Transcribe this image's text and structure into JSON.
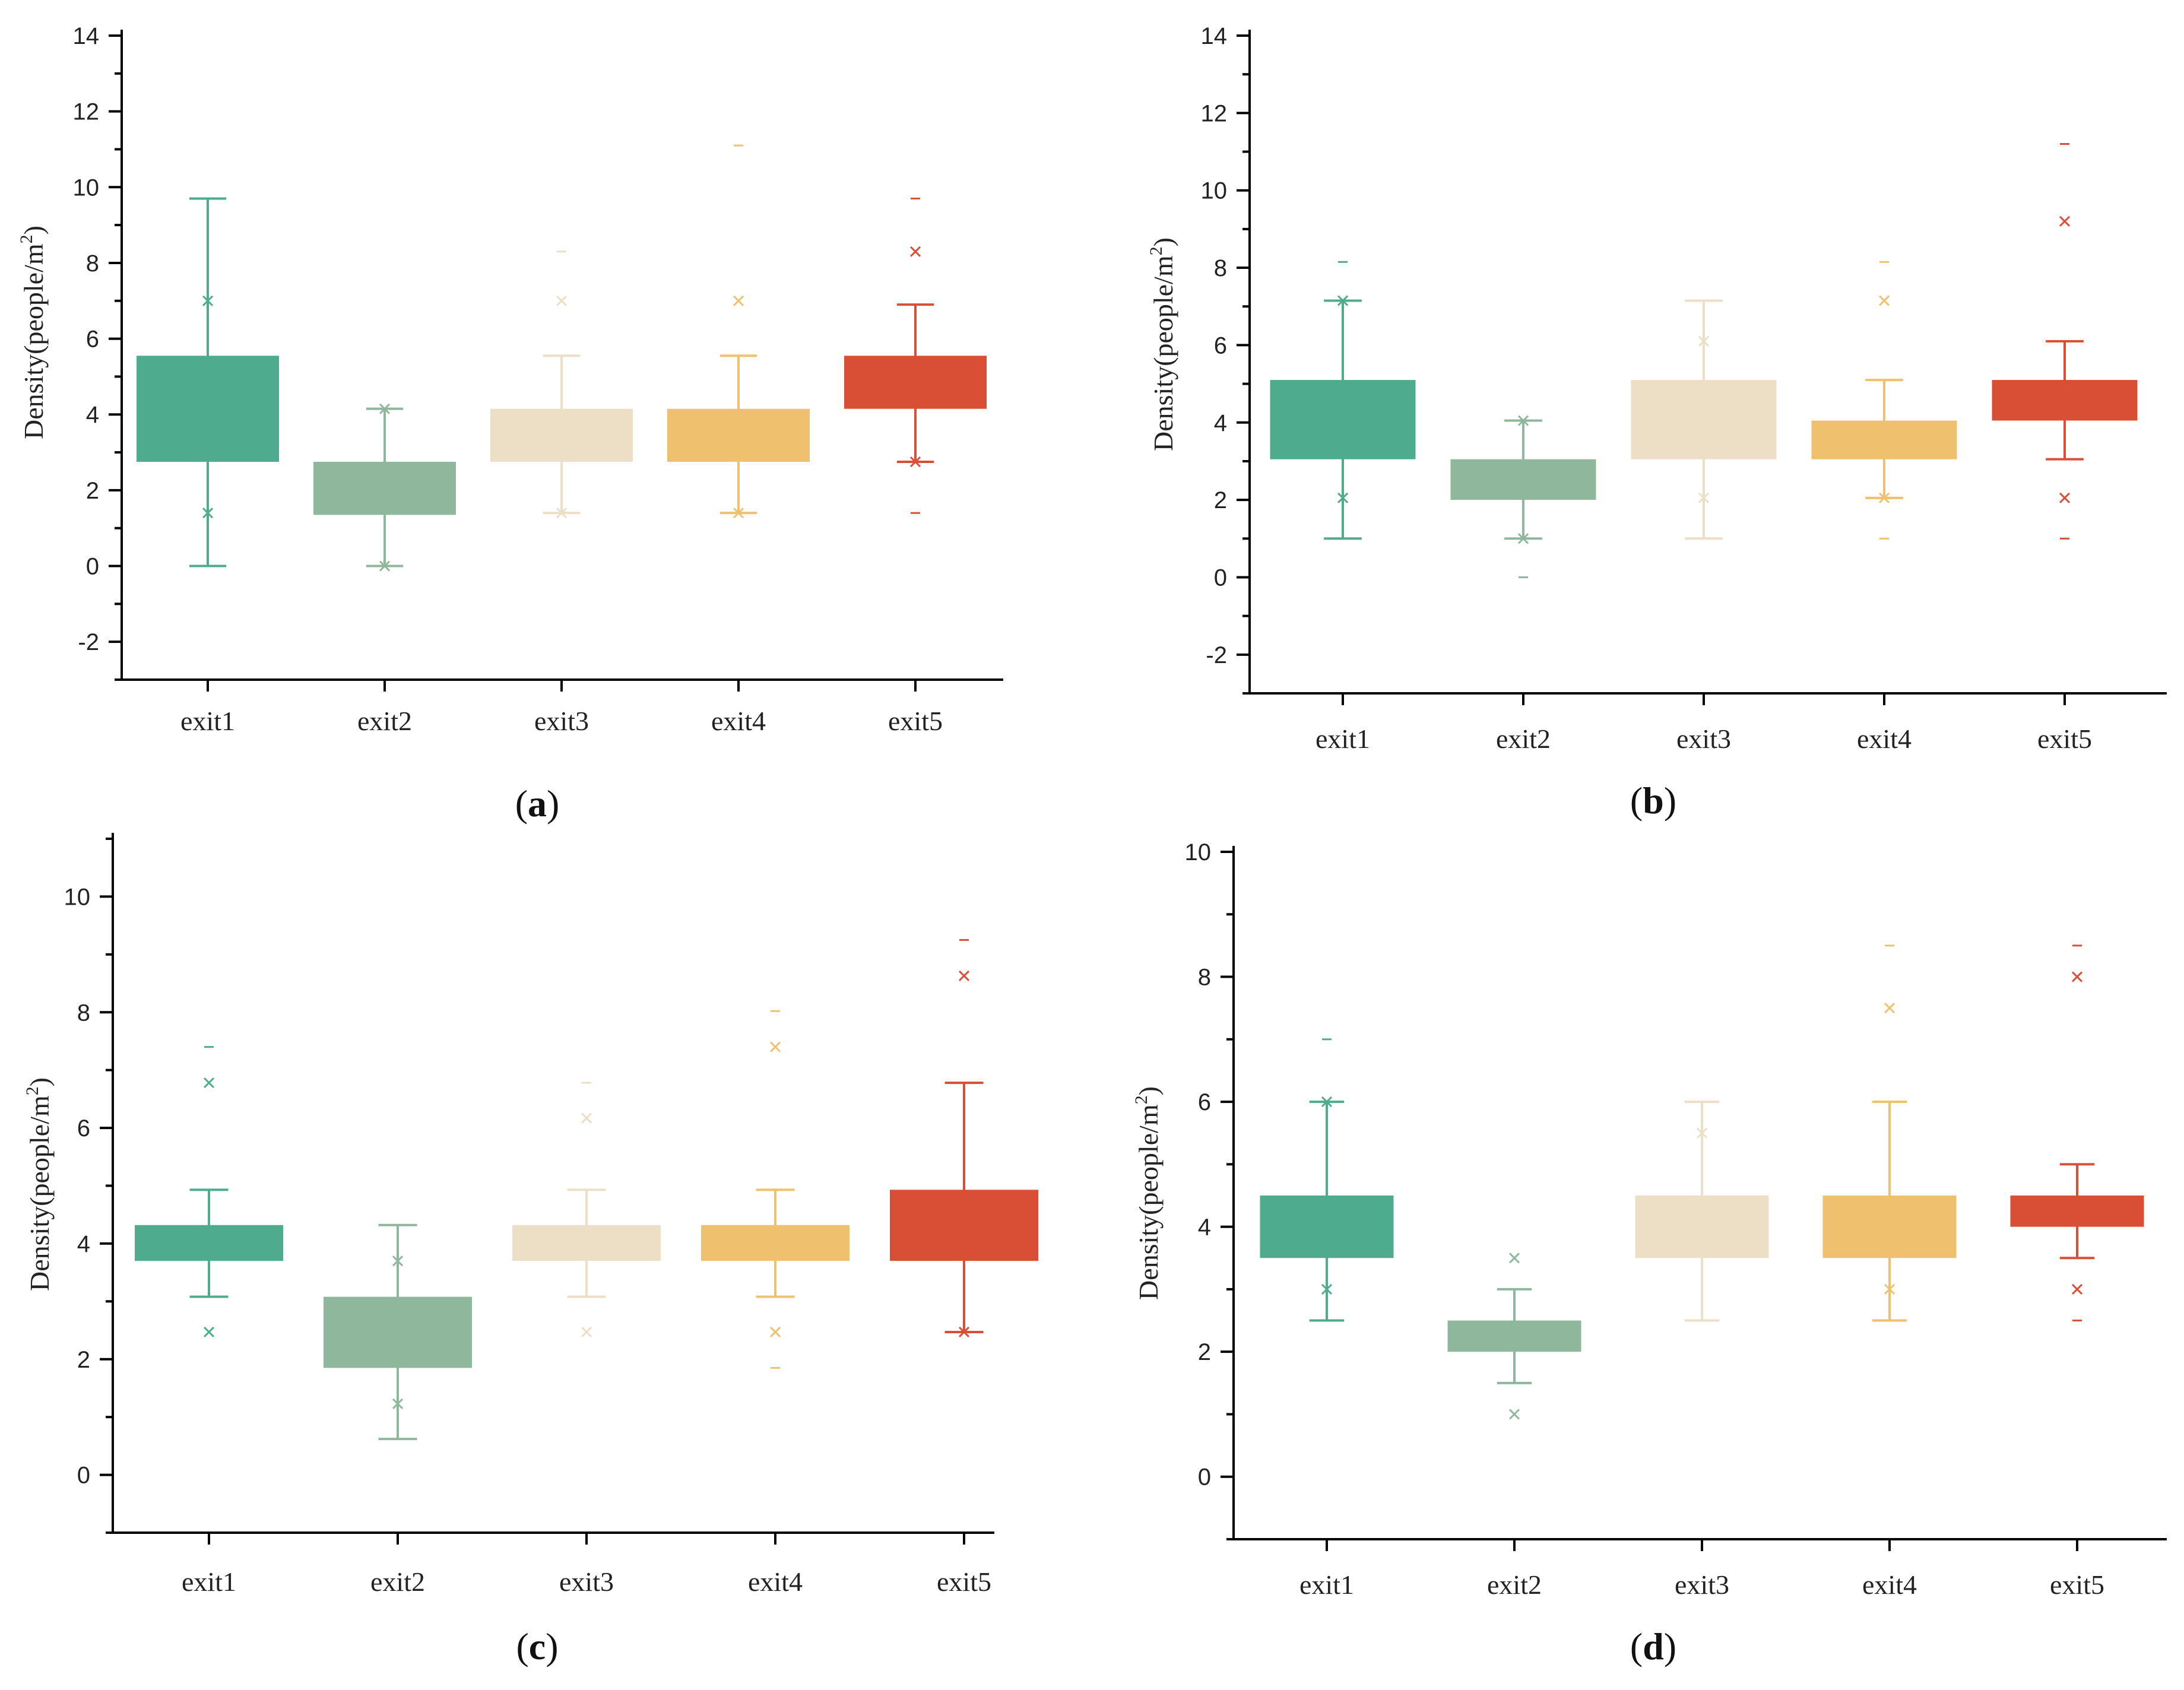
{
  "figure": {
    "colors": {
      "exit1": "#4fab8e",
      "exit2": "#8fb79c",
      "exit3": "#ecdfc6",
      "exit4": "#efc06e",
      "exit5": "#d94f35"
    }
  },
  "chart_data": [
    {
      "type": "box",
      "panel": "(a)",
      "panel_letter": "a",
      "ylabel": "Density(people/m",
      "ylabel_sup": "2",
      "ylabel_end": ")",
      "ylim": [
        -3,
        14
      ],
      "yticks": [
        -2,
        0,
        2,
        4,
        6,
        8,
        10,
        12,
        14
      ],
      "categories": [
        "exit1",
        "exit2",
        "exit3",
        "exit4",
        "exit5"
      ],
      "boxes": [
        {
          "name": "exit1",
          "q1": 2.75,
          "q3": 5.55,
          "wlo": 0.0,
          "whi": 9.7,
          "x_marks": [
            1.4,
            7.0
          ],
          "dash_marks": []
        },
        {
          "name": "exit2",
          "q1": 1.35,
          "q3": 2.75,
          "wlo": 0.0,
          "whi": 4.15,
          "x_marks": [
            0.0,
            4.15
          ],
          "dash_marks": []
        },
        {
          "name": "exit3",
          "q1": 2.75,
          "q3": 4.15,
          "wlo": 1.4,
          "whi": 5.55,
          "x_marks": [
            1.4,
            7.0
          ],
          "dash_marks": [
            8.3
          ]
        },
        {
          "name": "exit4",
          "q1": 2.75,
          "q3": 4.15,
          "wlo": 1.4,
          "whi": 5.55,
          "x_marks": [
            1.4,
            7.0
          ],
          "dash_marks": [
            11.1
          ]
        },
        {
          "name": "exit5",
          "q1": 4.15,
          "q3": 5.55,
          "wlo": 2.75,
          "whi": 6.9,
          "x_marks": [
            2.75,
            8.3
          ],
          "dash_marks": [
            1.4,
            9.7
          ]
        }
      ]
    },
    {
      "type": "box",
      "panel": "(b)",
      "panel_letter": "b",
      "ylabel": "Density(people/m",
      "ylabel_sup": "2",
      "ylabel_end": ")",
      "ylim": [
        -3,
        14
      ],
      "yticks": [
        -2,
        0,
        2,
        4,
        6,
        8,
        10,
        12,
        14
      ],
      "categories": [
        "exit1",
        "exit2",
        "exit3",
        "exit4",
        "exit5"
      ],
      "boxes": [
        {
          "name": "exit1",
          "q1": 3.05,
          "q3": 5.1,
          "wlo": 1.0,
          "whi": 7.15,
          "x_marks": [
            2.05,
            7.15
          ],
          "dash_marks": [
            8.15
          ]
        },
        {
          "name": "exit2",
          "q1": 2.0,
          "q3": 3.05,
          "wlo": 1.0,
          "whi": 4.05,
          "x_marks": [
            1.0,
            4.05
          ],
          "dash_marks": [
            0.0
          ]
        },
        {
          "name": "exit3",
          "q1": 3.05,
          "q3": 5.1,
          "wlo": 1.0,
          "whi": 7.15,
          "x_marks": [
            2.05,
            6.1
          ],
          "dash_marks": []
        },
        {
          "name": "exit4",
          "q1": 3.05,
          "q3": 4.05,
          "wlo": 2.05,
          "whi": 5.1,
          "x_marks": [
            2.05,
            7.15
          ],
          "dash_marks": [
            1.0,
            8.15
          ]
        },
        {
          "name": "exit5",
          "q1": 4.05,
          "q3": 5.1,
          "wlo": 3.05,
          "whi": 6.1,
          "x_marks": [
            2.05,
            9.2
          ],
          "dash_marks": [
            1.0,
            11.2
          ]
        }
      ]
    },
    {
      "type": "box",
      "panel": "(c)",
      "panel_letter": "c",
      "ylabel": "Density(people/m",
      "ylabel_sup": "2",
      "ylabel_end": ")",
      "ylim": [
        -1,
        11
      ],
      "yticks": [
        0,
        2,
        4,
        6,
        8,
        10
      ],
      "categories": [
        "exit1",
        "exit2",
        "exit3",
        "exit4",
        "exit5"
      ],
      "boxes": [
        {
          "name": "exit1",
          "q1": 3.7,
          "q3": 4.32,
          "wlo": 3.08,
          "whi": 4.93,
          "x_marks": [
            2.47,
            6.78
          ],
          "dash_marks": [
            7.4
          ]
        },
        {
          "name": "exit2",
          "q1": 1.85,
          "q3": 3.08,
          "wlo": 0.62,
          "whi": 4.32,
          "x_marks": [
            1.23,
            3.7
          ],
          "dash_marks": []
        },
        {
          "name": "exit3",
          "q1": 3.7,
          "q3": 4.32,
          "wlo": 3.08,
          "whi": 4.93,
          "x_marks": [
            2.47,
            6.17
          ],
          "dash_marks": [
            6.78
          ]
        },
        {
          "name": "exit4",
          "q1": 3.7,
          "q3": 4.32,
          "wlo": 3.08,
          "whi": 4.93,
          "x_marks": [
            2.47,
            7.4
          ],
          "dash_marks": [
            1.85,
            8.02
          ]
        },
        {
          "name": "exit5",
          "q1": 3.7,
          "q3": 4.93,
          "wlo": 2.47,
          "whi": 6.78,
          "x_marks": [
            2.47,
            8.63
          ],
          "dash_marks": [
            9.25
          ]
        }
      ]
    },
    {
      "type": "box",
      "panel": "(d)",
      "panel_letter": "d",
      "ylabel": "Density(people/m",
      "ylabel_sup": "2",
      "ylabel_end": ")",
      "ylim": [
        -1,
        10
      ],
      "yticks": [
        0,
        2,
        4,
        6,
        8,
        10
      ],
      "categories": [
        "exit1",
        "exit2",
        "exit3",
        "exit4",
        "exit5"
      ],
      "boxes": [
        {
          "name": "exit1",
          "q1": 3.5,
          "q3": 4.5,
          "wlo": 2.5,
          "whi": 6.0,
          "x_marks": [
            3.0,
            6.0
          ],
          "dash_marks": [
            7.0
          ]
        },
        {
          "name": "exit2",
          "q1": 2.0,
          "q3": 2.5,
          "wlo": 1.5,
          "whi": 3.0,
          "x_marks": [
            1.0,
            3.5
          ],
          "dash_marks": []
        },
        {
          "name": "exit3",
          "q1": 3.5,
          "q3": 4.5,
          "wlo": 2.5,
          "whi": 6.0,
          "x_marks": [
            5.5
          ],
          "dash_marks": []
        },
        {
          "name": "exit4",
          "q1": 3.5,
          "q3": 4.5,
          "wlo": 2.5,
          "whi": 6.0,
          "x_marks": [
            3.0,
            7.5
          ],
          "dash_marks": [
            8.5
          ]
        },
        {
          "name": "exit5",
          "q1": 4.0,
          "q3": 4.5,
          "wlo": 3.5,
          "whi": 5.0,
          "x_marks": [
            3.0,
            8.0
          ],
          "dash_marks": [
            2.5,
            8.5
          ]
        }
      ]
    }
  ]
}
